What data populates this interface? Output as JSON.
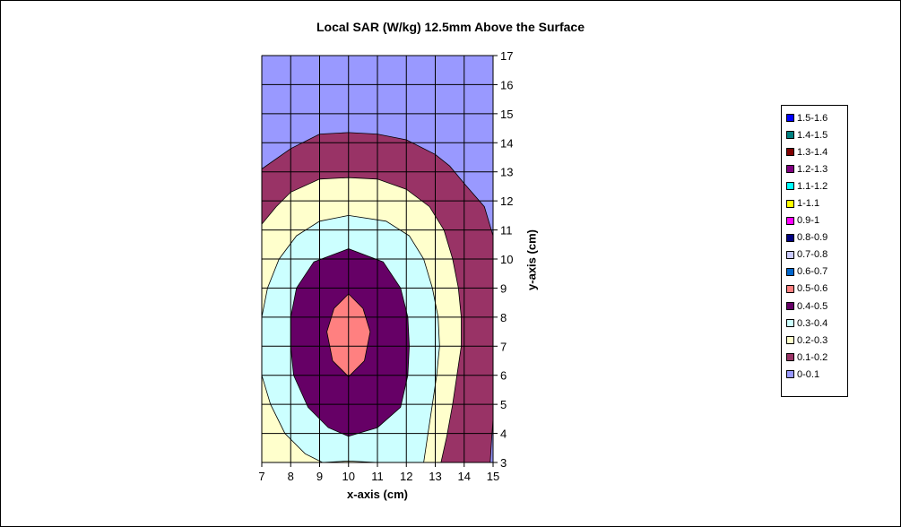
{
  "chart_data": {
    "type": "heatmap",
    "title": "Local SAR (W/kg) 12.5mm Above the Surface",
    "xlabel": "x-axis (cm)",
    "ylabel": "y-axis (cm)",
    "xlim": [
      7,
      15
    ],
    "ylim": [
      3,
      17
    ],
    "x_ticks": [
      "7",
      "8",
      "9",
      "10",
      "11",
      "12",
      "13",
      "14",
      "15"
    ],
    "y_ticks": [
      "3",
      "4",
      "5",
      "6",
      "7",
      "8",
      "9",
      "10",
      "11",
      "12",
      "13",
      "14",
      "15",
      "16",
      "17"
    ],
    "grid": true,
    "legend_position": "right",
    "legend": [
      {
        "label": "1.5-1.6",
        "color": "#0000ff"
      },
      {
        "label": "1.4-1.5",
        "color": "#008080"
      },
      {
        "label": "1.3-1.4",
        "color": "#800000"
      },
      {
        "label": "1.2-1.3",
        "color": "#800080"
      },
      {
        "label": "1.1-1.2",
        "color": "#00ffff"
      },
      {
        "label": "1-1.1",
        "color": "#ffff00"
      },
      {
        "label": "0.9-1",
        "color": "#ff00ff"
      },
      {
        "label": "0.8-0.9",
        "color": "#000080"
      },
      {
        "label": "0.7-0.8",
        "color": "#ccccff"
      },
      {
        "label": "0.6-0.7",
        "color": "#0066cc"
      },
      {
        "label": "0.5-0.6",
        "color": "#ff8080"
      },
      {
        "label": "0.4-0.5",
        "color": "#660066"
      },
      {
        "label": "0.3-0.4",
        "color": "#ccffff"
      },
      {
        "label": "0.2-0.3",
        "color": "#ffffcc"
      },
      {
        "label": "0.1-0.2",
        "color": "#993366"
      },
      {
        "label": "0-0.1",
        "color": "#9999ff"
      }
    ],
    "contours": [
      {
        "level": "0-0.1",
        "color": "#9999ff",
        "points": [
          [
            7,
            3
          ],
          [
            15,
            3
          ],
          [
            15,
            17
          ],
          [
            7,
            17
          ]
        ]
      },
      {
        "level": "0.1-0.2",
        "color": "#993366",
        "points": [
          [
            7,
            3
          ],
          [
            14.9,
            3
          ],
          [
            14.95,
            3.8
          ],
          [
            15,
            4.5
          ],
          [
            15,
            10.8
          ],
          [
            14.7,
            11.8
          ],
          [
            14,
            12.6
          ],
          [
            13.5,
            13.2
          ],
          [
            13,
            13.6
          ],
          [
            12,
            14.1
          ],
          [
            11,
            14.3
          ],
          [
            10,
            14.35
          ],
          [
            9,
            14.3
          ],
          [
            8,
            13.8
          ],
          [
            7,
            13.1
          ]
        ]
      },
      {
        "level": "0.2-0.3",
        "color": "#ffffcc",
        "points": [
          [
            7,
            3
          ],
          [
            13.2,
            3
          ],
          [
            13.4,
            3.9
          ],
          [
            13.6,
            5
          ],
          [
            13.9,
            7
          ],
          [
            13.9,
            8
          ],
          [
            13.8,
            9
          ],
          [
            13.6,
            10
          ],
          [
            13.3,
            11
          ],
          [
            12.8,
            11.8
          ],
          [
            12,
            12.4
          ],
          [
            11,
            12.75
          ],
          [
            10,
            12.8
          ],
          [
            9,
            12.75
          ],
          [
            8,
            12.3
          ],
          [
            7.5,
            11.8
          ],
          [
            7,
            11.2
          ]
        ]
      },
      {
        "level": "0.3-0.4",
        "color": "#ccffff",
        "points": [
          [
            9.1,
            3
          ],
          [
            10,
            3.05
          ],
          [
            11,
            3
          ],
          [
            12.6,
            3
          ],
          [
            12.75,
            4
          ],
          [
            12.9,
            5
          ],
          [
            13.05,
            6
          ],
          [
            13.15,
            7
          ],
          [
            13.1,
            8
          ],
          [
            12.9,
            9
          ],
          [
            12.6,
            10
          ],
          [
            12.1,
            10.8
          ],
          [
            11.3,
            11.3
          ],
          [
            10,
            11.5
          ],
          [
            9,
            11.3
          ],
          [
            8.2,
            10.8
          ],
          [
            7.6,
            10
          ],
          [
            7.2,
            9
          ],
          [
            7,
            8
          ],
          [
            7,
            6
          ],
          [
            7.3,
            5
          ],
          [
            7.8,
            4
          ],
          [
            8.5,
            3.3
          ]
        ]
      },
      {
        "level": "0.4-0.5",
        "color": "#660066",
        "points": [
          [
            10,
            3.9
          ],
          [
            11,
            4.2
          ],
          [
            11.8,
            4.9
          ],
          [
            12.05,
            6
          ],
          [
            12.1,
            7
          ],
          [
            12.05,
            8
          ],
          [
            11.8,
            9
          ],
          [
            11.2,
            9.9
          ],
          [
            10,
            10.35
          ],
          [
            8.8,
            9.9
          ],
          [
            8.2,
            9
          ],
          [
            8,
            8
          ],
          [
            8,
            7
          ],
          [
            8.1,
            6
          ],
          [
            8.6,
            4.9
          ],
          [
            9.3,
            4.2
          ]
        ]
      },
      {
        "level": "0.5-0.6",
        "color": "#ff8080",
        "points": [
          [
            10,
            5.95
          ],
          [
            10.55,
            6.5
          ],
          [
            10.75,
            7.5
          ],
          [
            10.5,
            8.3
          ],
          [
            10,
            8.8
          ],
          [
            9.5,
            8.3
          ],
          [
            9.25,
            7.5
          ],
          [
            9.45,
            6.5
          ]
        ]
      }
    ]
  }
}
